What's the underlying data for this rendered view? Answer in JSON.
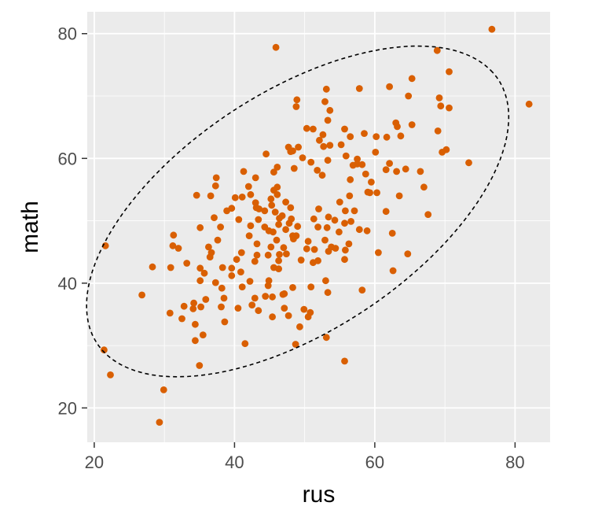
{
  "chart_data": {
    "type": "scatter",
    "title": "",
    "xlabel": "rus",
    "ylabel": "math",
    "xlim": [
      19,
      85
    ],
    "ylim": [
      14.5,
      83.5
    ],
    "x_ticks": [
      20,
      40,
      60,
      80
    ],
    "y_ticks": [
      20,
      40,
      60,
      80
    ],
    "x_tick_labels": [
      "20",
      "40",
      "60",
      "80"
    ],
    "y_tick_labels": [
      "20",
      "40",
      "60",
      "80"
    ],
    "grid": true,
    "colors": {
      "point": "#d95f02",
      "panel": "#ebebeb",
      "grid": "#ffffff",
      "ellipse": "#000000"
    },
    "ellipse": {
      "style": "dashed",
      "center": [
        49,
        51.5
      ],
      "semi_major": 35.65,
      "semi_minor": 18.39,
      "angle_deg": 38.7
    },
    "points": [
      [
        76.7,
        80.7
      ],
      [
        45.9,
        77.8
      ],
      [
        68.9,
        77.3
      ],
      [
        70.6,
        73.9
      ],
      [
        65.3,
        72.8
      ],
      [
        62.1,
        71.5
      ],
      [
        57.8,
        71.2
      ],
      [
        53.1,
        71.1
      ],
      [
        64.8,
        70.0
      ],
      [
        48.9,
        69.4
      ],
      [
        52.9,
        69.1
      ],
      [
        69.2,
        69.7
      ],
      [
        48.8,
        68.3
      ],
      [
        69.4,
        68.4
      ],
      [
        70.6,
        68.1
      ],
      [
        82.0,
        68.7
      ],
      [
        53.6,
        67.7
      ],
      [
        53.3,
        66.1
      ],
      [
        63.0,
        65.7
      ],
      [
        63.2,
        65.1
      ],
      [
        65.3,
        65.4
      ],
      [
        51.2,
        64.7
      ],
      [
        50.3,
        64.8
      ],
      [
        55.7,
        64.7
      ],
      [
        69.0,
        64.4
      ],
      [
        58.5,
        64.0
      ],
      [
        52.6,
        63.8
      ],
      [
        60.2,
        63.5
      ],
      [
        61.7,
        63.4
      ],
      [
        63.7,
        63.6
      ],
      [
        56.5,
        63.5
      ],
      [
        52.1,
        62.9
      ],
      [
        55.2,
        62.2
      ],
      [
        52.7,
        61.9
      ],
      [
        53.6,
        62.1
      ],
      [
        47.7,
        61.8
      ],
      [
        49.1,
        61.8
      ],
      [
        48.3,
        61.2
      ],
      [
        70.2,
        61.4
      ],
      [
        60.1,
        61.0
      ],
      [
        69.6,
        61.0
      ],
      [
        48.0,
        61.1
      ],
      [
        55.9,
        60.4
      ],
      [
        44.5,
        60.7
      ],
      [
        49.7,
        60.1
      ],
      [
        57.5,
        59.9
      ],
      [
        53.3,
        59.7
      ],
      [
        50.9,
        59.4
      ],
      [
        62.1,
        59.2
      ],
      [
        57.5,
        59.1
      ],
      [
        58.2,
        59.0
      ],
      [
        56.9,
        58.9
      ],
      [
        46.1,
        58.6
      ],
      [
        48.5,
        58.4
      ],
      [
        64.4,
        58.3
      ],
      [
        63.1,
        57.9
      ],
      [
        52.5,
        57.3
      ],
      [
        73.4,
        59.3
      ],
      [
        51.8,
        58.1
      ],
      [
        61.6,
        58.2
      ],
      [
        58.7,
        57.5
      ],
      [
        66.5,
        57.9
      ],
      [
        45.6,
        57.8
      ],
      [
        41.3,
        57.9
      ],
      [
        37.4,
        56.9
      ],
      [
        43.0,
        56.9
      ],
      [
        56.5,
        56.6
      ],
      [
        59.5,
        56.2
      ],
      [
        37.3,
        55.6
      ],
      [
        42.0,
        55.5
      ],
      [
        46.1,
        55.4
      ],
      [
        45.6,
        54.9
      ],
      [
        59.3,
        54.5
      ],
      [
        56.4,
        54.0
      ],
      [
        59.0,
        54.6
      ],
      [
        67.0,
        55.4
      ],
      [
        60.3,
        54.5
      ],
      [
        63.5,
        54.0
      ],
      [
        36.6,
        54.0
      ],
      [
        34.6,
        54.1
      ],
      [
        42.3,
        54.2
      ],
      [
        46.1,
        54.2
      ],
      [
        41.1,
        53.8
      ],
      [
        40.1,
        53.7
      ],
      [
        45.2,
        53.5
      ],
      [
        47.3,
        53.0
      ],
      [
        43.0,
        52.9
      ],
      [
        55.0,
        53.0
      ],
      [
        45.3,
        52.5
      ],
      [
        48.0,
        52.1
      ],
      [
        44.3,
        51.6
      ],
      [
        52.0,
        51.9
      ],
      [
        43.1,
        52.1
      ],
      [
        43.5,
        51.9
      ],
      [
        39.6,
        52.0
      ],
      [
        38.9,
        51.6
      ],
      [
        45.8,
        51.4
      ],
      [
        57.1,
        51.6
      ],
      [
        55.8,
        51.6
      ],
      [
        61.6,
        51.5
      ],
      [
        46.8,
        50.8
      ],
      [
        37.1,
        50.5
      ],
      [
        46.4,
        50.4
      ],
      [
        48.1,
        50.3
      ],
      [
        53.4,
        50.6
      ],
      [
        51.3,
        50.3
      ],
      [
        54.3,
        50.1
      ],
      [
        67.6,
        51.0
      ],
      [
        40.6,
        50.2
      ],
      [
        43.4,
        50.2
      ],
      [
        56.6,
        49.9
      ],
      [
        55.7,
        49.6
      ],
      [
        47.8,
        49.6
      ],
      [
        46.3,
        49.4
      ],
      [
        49.0,
        49.1
      ],
      [
        44.3,
        49.0
      ],
      [
        38.0,
        49.0
      ],
      [
        42.3,
        49.2
      ],
      [
        51.9,
        49.0
      ],
      [
        53.2,
        48.9
      ],
      [
        35.1,
        48.9
      ],
      [
        47.3,
        48.6
      ],
      [
        44.9,
        48.4
      ],
      [
        45.5,
        48.2
      ],
      [
        48.8,
        47.6
      ],
      [
        48.3,
        47.6
      ],
      [
        57.8,
        48.6
      ],
      [
        58.9,
        48.4
      ],
      [
        54.9,
        48.2
      ],
      [
        62.5,
        48.0
      ],
      [
        31.3,
        47.7
      ],
      [
        42.1,
        47.6
      ],
      [
        48.4,
        47.1
      ],
      [
        46.0,
        46.9
      ],
      [
        37.6,
        46.9
      ],
      [
        52.9,
        46.9
      ],
      [
        50.5,
        46.7
      ],
      [
        56.3,
        46.3
      ],
      [
        53.8,
        45.8
      ],
      [
        43.2,
        46.3
      ],
      [
        54.4,
        45.6
      ],
      [
        45.2,
        45.8
      ],
      [
        47.0,
        45.7
      ],
      [
        50.3,
        45.5
      ],
      [
        36.3,
        45.8
      ],
      [
        21.6,
        46.0
      ],
      [
        31.2,
        46.0
      ],
      [
        32.0,
        45.6
      ],
      [
        51.4,
        45.4
      ],
      [
        46.4,
        44.6
      ],
      [
        47.4,
        44.7
      ],
      [
        44.8,
        44.5
      ],
      [
        41.0,
        44.9
      ],
      [
        53.4,
        45.1
      ],
      [
        36.7,
        44.9
      ],
      [
        43.2,
        44.5
      ],
      [
        55.8,
        45.3
      ],
      [
        36.5,
        44.2
      ],
      [
        60.5,
        44.9
      ],
      [
        64.7,
        44.7
      ],
      [
        55.7,
        43.8
      ],
      [
        51.2,
        43.3
      ],
      [
        49.5,
        43.7
      ],
      [
        40.3,
        43.8
      ],
      [
        42.9,
        43.5
      ],
      [
        33.2,
        43.2
      ],
      [
        46.3,
        43.6
      ],
      [
        51.9,
        43.6
      ],
      [
        35.1,
        42.4
      ],
      [
        38.3,
        42.5
      ],
      [
        46.3,
        42.3
      ],
      [
        40.9,
        41.8
      ],
      [
        45.6,
        42.5
      ],
      [
        30.9,
        42.5
      ],
      [
        39.6,
        42.4
      ],
      [
        62.6,
        42.0
      ],
      [
        28.3,
        42.6
      ],
      [
        39.6,
        41.2
      ],
      [
        35.7,
        41.6
      ],
      [
        44.9,
        40.4
      ],
      [
        37.3,
        40.1
      ],
      [
        53.0,
        40.4
      ],
      [
        35.1,
        40.4
      ],
      [
        42.2,
        40.3
      ],
      [
        44.8,
        39.6
      ],
      [
        50.9,
        39.4
      ],
      [
        41.1,
        39.4
      ],
      [
        38.2,
        39.2
      ],
      [
        48.3,
        39.3
      ],
      [
        58.2,
        38.9
      ],
      [
        47.1,
        38.3
      ],
      [
        46.9,
        38.2
      ],
      [
        38.5,
        37.6
      ],
      [
        45.4,
        37.8
      ],
      [
        42.9,
        37.6
      ],
      [
        35.9,
        37.4
      ],
      [
        44.4,
        37.9
      ],
      [
        53.3,
        38.5
      ],
      [
        26.8,
        38.1
      ],
      [
        34.2,
        36.8
      ],
      [
        42.5,
        36.5
      ],
      [
        38.1,
        36.2
      ],
      [
        32.8,
        36.3
      ],
      [
        35.2,
        36.2
      ],
      [
        40.5,
        36.0
      ],
      [
        47.1,
        36.0
      ],
      [
        43.4,
        35.6
      ],
      [
        30.8,
        35.2
      ],
      [
        49.9,
        35.8
      ],
      [
        50.8,
        35.3
      ],
      [
        34.1,
        35.9
      ],
      [
        47.7,
        34.8
      ],
      [
        32.5,
        34.3
      ],
      [
        45.4,
        34.6
      ],
      [
        50.5,
        34.6
      ],
      [
        38.6,
        33.8
      ],
      [
        34.4,
        33.4
      ],
      [
        49.3,
        33.0
      ],
      [
        35.5,
        31.7
      ],
      [
        53.1,
        31.3
      ],
      [
        34.4,
        30.8
      ],
      [
        41.5,
        30.3
      ],
      [
        48.7,
        30.2
      ],
      [
        21.4,
        29.3
      ],
      [
        55.7,
        27.5
      ],
      [
        35.0,
        26.8
      ],
      [
        22.3,
        25.3
      ],
      [
        29.9,
        22.9
      ],
      [
        29.3,
        17.7
      ]
    ]
  }
}
